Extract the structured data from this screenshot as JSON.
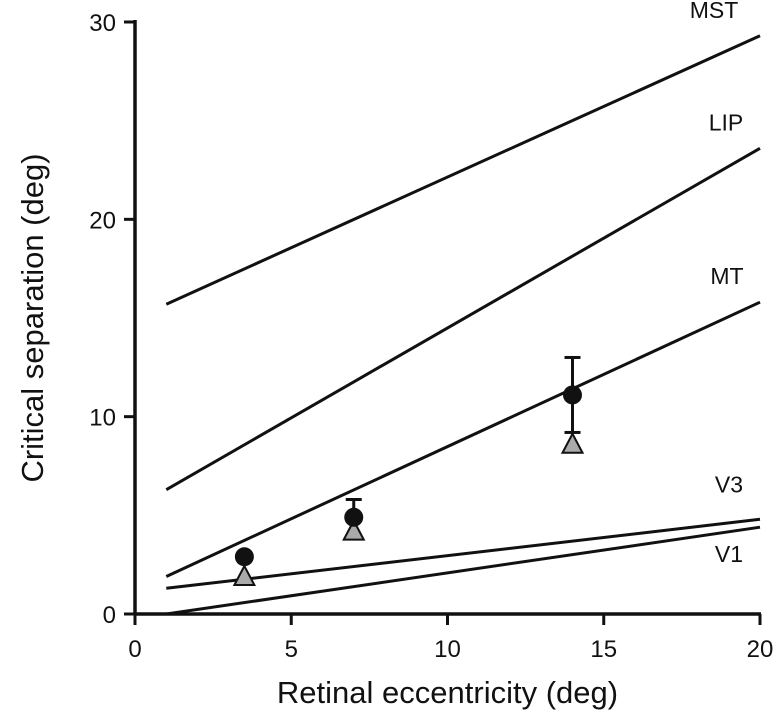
{
  "chart_data": {
    "type": "line",
    "title": "",
    "xlabel": "Retinal eccentricity (deg)",
    "ylabel": "Critical separation (deg)",
    "xlim": [
      0,
      20
    ],
    "ylim": [
      0,
      30
    ],
    "xticks": [
      0,
      5,
      10,
      15,
      20
    ],
    "yticks": [
      0,
      10,
      20,
      30
    ],
    "grid": false,
    "lines": [
      {
        "name": "MST",
        "x": [
          1,
          20
        ],
        "y": [
          15.7,
          29.3
        ]
      },
      {
        "name": "LIP",
        "x": [
          1,
          20
        ],
        "y": [
          6.3,
          23.6
        ]
      },
      {
        "name": "MT",
        "x": [
          1,
          20
        ],
        "y": [
          1.9,
          15.8
        ]
      },
      {
        "name": "V3",
        "x": [
          1,
          20
        ],
        "y": [
          1.3,
          4.8
        ]
      },
      {
        "name": "V1",
        "x": [
          1,
          20
        ],
        "y": [
          0.0,
          4.4
        ]
      }
    ],
    "points": [
      {
        "marker": "circle",
        "color": "#111111",
        "x": [
          3.5,
          7,
          14
        ],
        "y": [
          2.9,
          4.9,
          11.1
        ],
        "y_upper": [
          null,
          5.8,
          13.0
        ],
        "y_lower": [
          null,
          null,
          9.2
        ]
      },
      {
        "marker": "triangle",
        "color": "#aaaaaa",
        "x": [
          3.5,
          7,
          14
        ],
        "y": [
          1.9,
          4.2,
          8.6
        ]
      }
    ],
    "colors": {
      "line": "#111111",
      "circle_fill": "#111111",
      "triangle_fill": "#aaaaaa"
    }
  }
}
